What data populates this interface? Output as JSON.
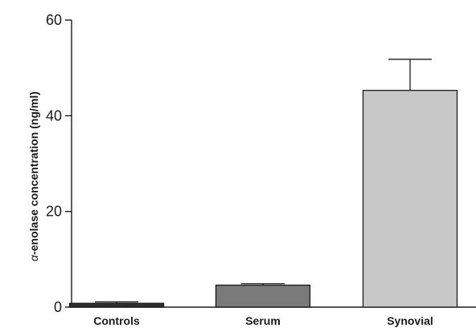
{
  "chart_data": {
    "type": "bar",
    "categories": [
      "Controls",
      "Serum",
      "Synovial"
    ],
    "values": [
      0.8,
      4.6,
      45.3
    ],
    "error_plus": [
      0.3,
      0.3,
      6.5
    ],
    "bar_colors": [
      "#2e2e2e",
      "#7a7a7a",
      "#c8c8c8"
    ],
    "ylabel_symbol": "α",
    "ylabel": "-enolase concentration (ng/ml)",
    "xlabel": "",
    "title": "",
    "ylim": [
      0,
      60
    ],
    "yticks": [
      0,
      20,
      40,
      60
    ],
    "grid": false,
    "legend": "none"
  }
}
